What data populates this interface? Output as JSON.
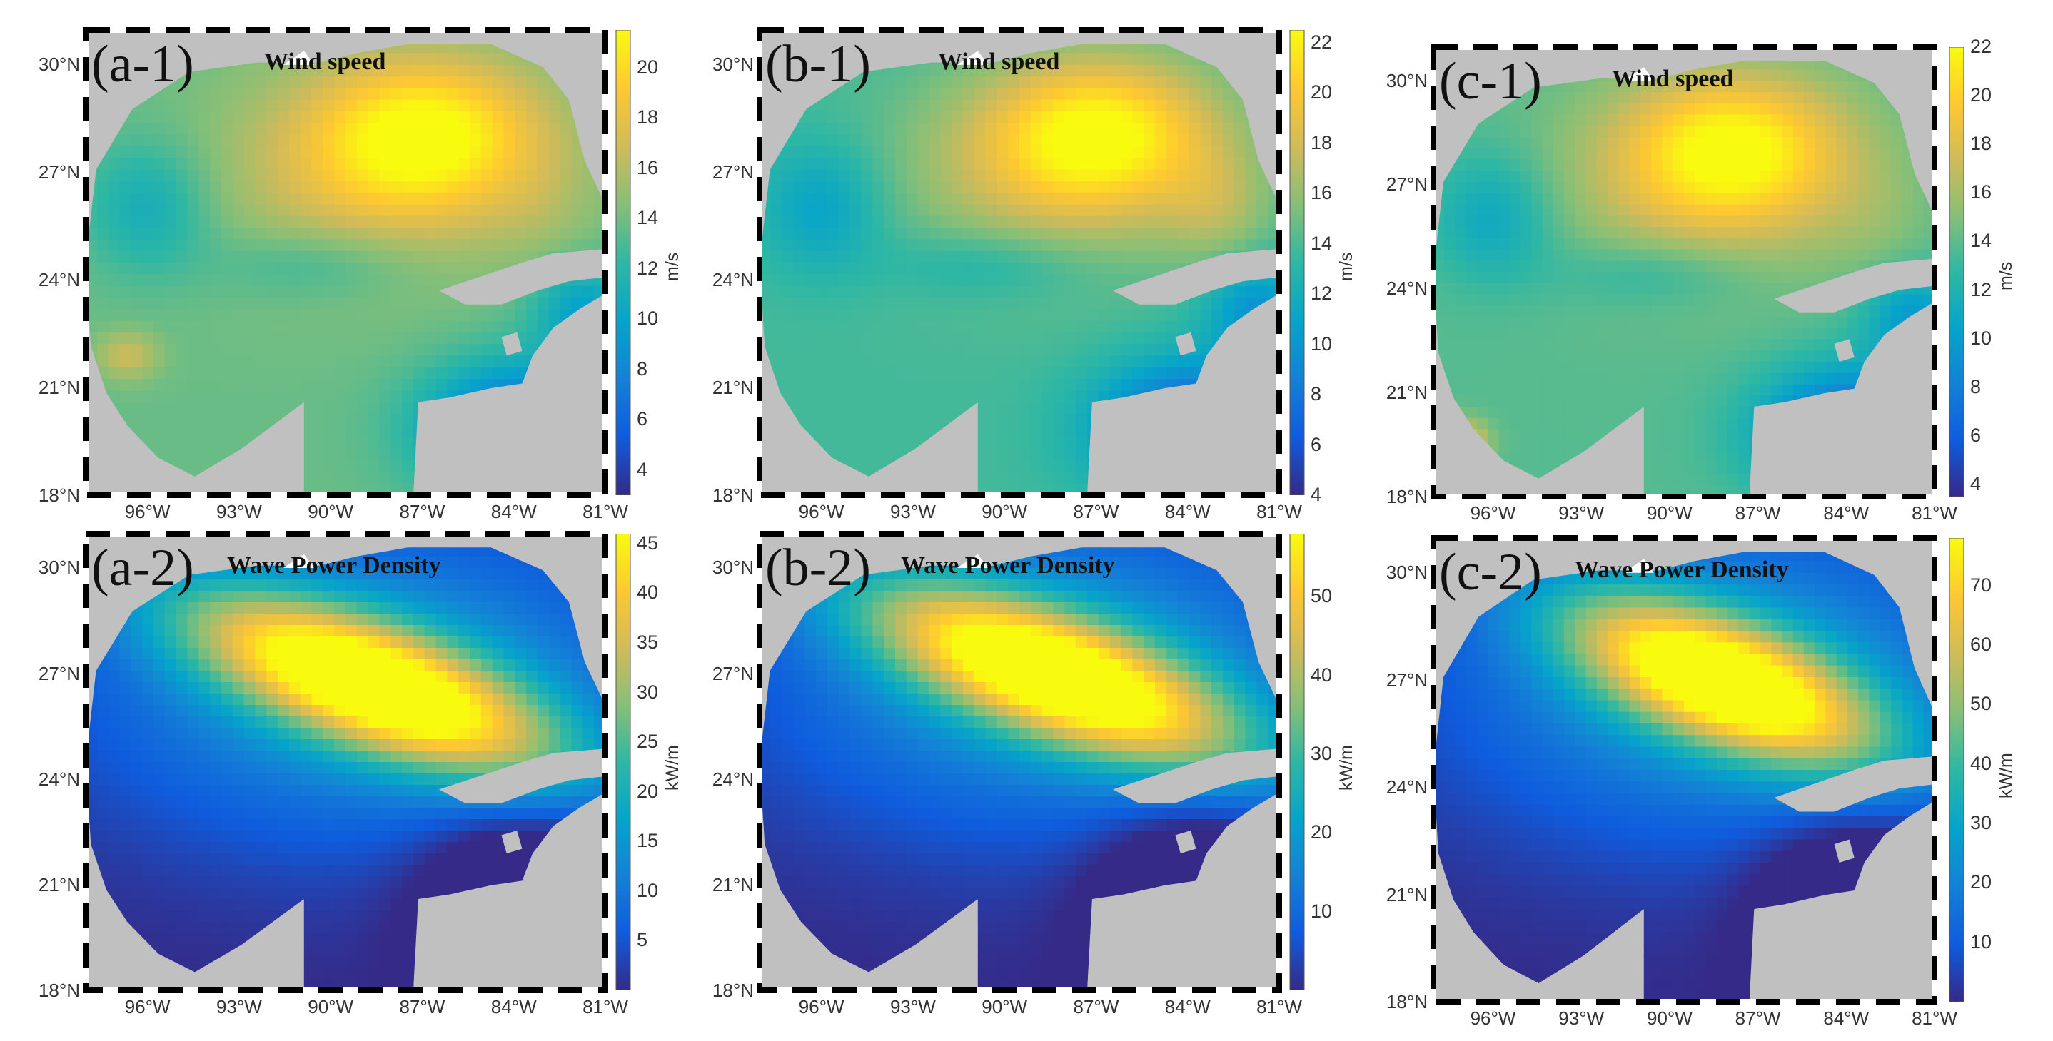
{
  "figure": {
    "lat_ticks": [
      "30°N",
      "27°N",
      "24°N",
      "21°N",
      "18°N"
    ],
    "lon_ticks": [
      "96°W",
      "93°W",
      "90°W",
      "87°W",
      "84°W",
      "81°W"
    ],
    "colormap": [
      "#352a87",
      "#0f5cdd",
      "#1481d6",
      "#06a4ca",
      "#2eb7a4",
      "#87bf77",
      "#d1bb59",
      "#fec832",
      "#f9fb0e"
    ],
    "land_color": "#c0c0c0"
  },
  "chart_data": [
    {
      "type": "heatmap",
      "label": "(a-1)",
      "title": "Wind speed",
      "unit": "m/s",
      "colorbar_ticks": [
        "4",
        "6",
        "8",
        "10",
        "12",
        "14",
        "16",
        "18",
        "20"
      ],
      "range": [
        3,
        21.5
      ],
      "field": "wind",
      "scheme": "a",
      "xlim": [
        -98,
        -81
      ],
      "ylim": [
        18,
        31
      ],
      "x": [
        "96°W",
        "93°W",
        "90°W",
        "87°W",
        "84°W",
        "81°W"
      ],
      "y": [
        "30°N",
        "27°N",
        "24°N",
        "21°N",
        "18°N"
      ]
    },
    {
      "type": "heatmap",
      "label": "(b-1)",
      "title": "Wind speed",
      "unit": "m/s",
      "colorbar_ticks": [
        "4",
        "6",
        "8",
        "10",
        "12",
        "14",
        "16",
        "18",
        "20",
        "22"
      ],
      "range": [
        4,
        22.5
      ],
      "field": "wind",
      "scheme": "b",
      "xlim": [
        -98,
        -81
      ],
      "ylim": [
        18,
        31
      ],
      "x": [
        "96°W",
        "93°W",
        "90°W",
        "87°W",
        "84°W",
        "81°W"
      ],
      "y": [
        "30°N",
        "27°N",
        "24°N",
        "21°N",
        "18°N"
      ]
    },
    {
      "type": "heatmap",
      "label": "(c-1)",
      "title": "Wind speed",
      "unit": "m/s",
      "colorbar_ticks": [
        "4",
        "6",
        "8",
        "10",
        "12",
        "14",
        "16",
        "18",
        "20",
        "22"
      ],
      "range": [
        3.5,
        22
      ],
      "field": "wind",
      "scheme": "c",
      "xlim": [
        -98,
        -81
      ],
      "ylim": [
        18,
        31
      ],
      "x": [
        "96°W",
        "93°W",
        "90°W",
        "87°W",
        "84°W",
        "81°W"
      ],
      "y": [
        "30°N",
        "27°N",
        "24°N",
        "21°N",
        "18°N"
      ]
    },
    {
      "type": "heatmap",
      "label": "(a-2)",
      "title": "Wave Power Density",
      "unit": "kW/m",
      "colorbar_ticks": [
        "5",
        "10",
        "15",
        "20",
        "25",
        "30",
        "35",
        "40",
        "45"
      ],
      "range": [
        0,
        46
      ],
      "field": "wave",
      "scheme": "a",
      "xlim": [
        -98,
        -81
      ],
      "ylim": [
        18,
        31
      ],
      "x": [
        "96°W",
        "93°W",
        "90°W",
        "87°W",
        "84°W",
        "81°W"
      ],
      "y": [
        "30°N",
        "27°N",
        "24°N",
        "21°N",
        "18°N"
      ]
    },
    {
      "type": "heatmap",
      "label": "(b-2)",
      "title": "Wave Power Density",
      "unit": "kW/m",
      "colorbar_ticks": [
        "10",
        "20",
        "30",
        "40",
        "50"
      ],
      "range": [
        0,
        58
      ],
      "field": "wave",
      "scheme": "b",
      "xlim": [
        -98,
        -81
      ],
      "ylim": [
        18,
        31
      ],
      "x": [
        "96°W",
        "93°W",
        "90°W",
        "87°W",
        "84°W",
        "81°W"
      ],
      "y": [
        "30°N",
        "27°N",
        "24°N",
        "21°N",
        "18°N"
      ]
    },
    {
      "type": "heatmap",
      "label": "(c-2)",
      "title": "Wave Power Density",
      "unit": "kW/m",
      "colorbar_ticks": [
        "10",
        "20",
        "30",
        "40",
        "50",
        "60",
        "70"
      ],
      "range": [
        0,
        78
      ],
      "field": "wave",
      "scheme": "c",
      "xlim": [
        -98,
        -81
      ],
      "ylim": [
        18,
        31
      ],
      "x": [
        "96°W",
        "93°W",
        "90°W",
        "87°W",
        "84°W",
        "81°W"
      ],
      "y": [
        "30°N",
        "27°N",
        "24°N",
        "21°N",
        "18°N"
      ]
    }
  ]
}
